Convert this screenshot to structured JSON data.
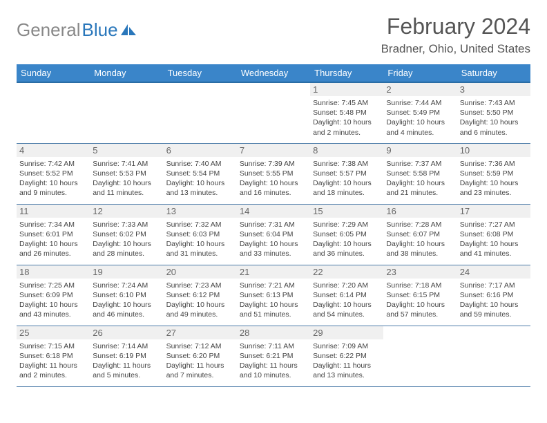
{
  "logo": {
    "text1": "General",
    "text2": "Blue",
    "accent": "#2a77bb",
    "muted": "#888888"
  },
  "header": {
    "month": "February 2024",
    "location": "Bradner, Ohio, United States"
  },
  "dayNames": [
    "Sunday",
    "Monday",
    "Tuesday",
    "Wednesday",
    "Thursday",
    "Friday",
    "Saturday"
  ],
  "theme": {
    "header_bg": "#3a85c9",
    "header_fg": "#ffffff",
    "row_border": "#4a7aa8",
    "daynum_bg": "#f0f0f0",
    "daynum_fg": "#666666",
    "text_color": "#444444"
  },
  "weeks": [
    [
      {
        "n": "",
        "sr": "",
        "ss": "",
        "dl": "",
        "empty": true
      },
      {
        "n": "",
        "sr": "",
        "ss": "",
        "dl": "",
        "empty": true
      },
      {
        "n": "",
        "sr": "",
        "ss": "",
        "dl": "",
        "empty": true
      },
      {
        "n": "",
        "sr": "",
        "ss": "",
        "dl": "",
        "empty": true
      },
      {
        "n": "1",
        "sr": "Sunrise: 7:45 AM",
        "ss": "Sunset: 5:48 PM",
        "dl": "Daylight: 10 hours and 2 minutes."
      },
      {
        "n": "2",
        "sr": "Sunrise: 7:44 AM",
        "ss": "Sunset: 5:49 PM",
        "dl": "Daylight: 10 hours and 4 minutes."
      },
      {
        "n": "3",
        "sr": "Sunrise: 7:43 AM",
        "ss": "Sunset: 5:50 PM",
        "dl": "Daylight: 10 hours and 6 minutes."
      }
    ],
    [
      {
        "n": "4",
        "sr": "Sunrise: 7:42 AM",
        "ss": "Sunset: 5:52 PM",
        "dl": "Daylight: 10 hours and 9 minutes."
      },
      {
        "n": "5",
        "sr": "Sunrise: 7:41 AM",
        "ss": "Sunset: 5:53 PM",
        "dl": "Daylight: 10 hours and 11 minutes."
      },
      {
        "n": "6",
        "sr": "Sunrise: 7:40 AM",
        "ss": "Sunset: 5:54 PM",
        "dl": "Daylight: 10 hours and 13 minutes."
      },
      {
        "n": "7",
        "sr": "Sunrise: 7:39 AM",
        "ss": "Sunset: 5:55 PM",
        "dl": "Daylight: 10 hours and 16 minutes."
      },
      {
        "n": "8",
        "sr": "Sunrise: 7:38 AM",
        "ss": "Sunset: 5:57 PM",
        "dl": "Daylight: 10 hours and 18 minutes."
      },
      {
        "n": "9",
        "sr": "Sunrise: 7:37 AM",
        "ss": "Sunset: 5:58 PM",
        "dl": "Daylight: 10 hours and 21 minutes."
      },
      {
        "n": "10",
        "sr": "Sunrise: 7:36 AM",
        "ss": "Sunset: 5:59 PM",
        "dl": "Daylight: 10 hours and 23 minutes."
      }
    ],
    [
      {
        "n": "11",
        "sr": "Sunrise: 7:34 AM",
        "ss": "Sunset: 6:01 PM",
        "dl": "Daylight: 10 hours and 26 minutes."
      },
      {
        "n": "12",
        "sr": "Sunrise: 7:33 AM",
        "ss": "Sunset: 6:02 PM",
        "dl": "Daylight: 10 hours and 28 minutes."
      },
      {
        "n": "13",
        "sr": "Sunrise: 7:32 AM",
        "ss": "Sunset: 6:03 PM",
        "dl": "Daylight: 10 hours and 31 minutes."
      },
      {
        "n": "14",
        "sr": "Sunrise: 7:31 AM",
        "ss": "Sunset: 6:04 PM",
        "dl": "Daylight: 10 hours and 33 minutes."
      },
      {
        "n": "15",
        "sr": "Sunrise: 7:29 AM",
        "ss": "Sunset: 6:05 PM",
        "dl": "Daylight: 10 hours and 36 minutes."
      },
      {
        "n": "16",
        "sr": "Sunrise: 7:28 AM",
        "ss": "Sunset: 6:07 PM",
        "dl": "Daylight: 10 hours and 38 minutes."
      },
      {
        "n": "17",
        "sr": "Sunrise: 7:27 AM",
        "ss": "Sunset: 6:08 PM",
        "dl": "Daylight: 10 hours and 41 minutes."
      }
    ],
    [
      {
        "n": "18",
        "sr": "Sunrise: 7:25 AM",
        "ss": "Sunset: 6:09 PM",
        "dl": "Daylight: 10 hours and 43 minutes."
      },
      {
        "n": "19",
        "sr": "Sunrise: 7:24 AM",
        "ss": "Sunset: 6:10 PM",
        "dl": "Daylight: 10 hours and 46 minutes."
      },
      {
        "n": "20",
        "sr": "Sunrise: 7:23 AM",
        "ss": "Sunset: 6:12 PM",
        "dl": "Daylight: 10 hours and 49 minutes."
      },
      {
        "n": "21",
        "sr": "Sunrise: 7:21 AM",
        "ss": "Sunset: 6:13 PM",
        "dl": "Daylight: 10 hours and 51 minutes."
      },
      {
        "n": "22",
        "sr": "Sunrise: 7:20 AM",
        "ss": "Sunset: 6:14 PM",
        "dl": "Daylight: 10 hours and 54 minutes."
      },
      {
        "n": "23",
        "sr": "Sunrise: 7:18 AM",
        "ss": "Sunset: 6:15 PM",
        "dl": "Daylight: 10 hours and 57 minutes."
      },
      {
        "n": "24",
        "sr": "Sunrise: 7:17 AM",
        "ss": "Sunset: 6:16 PM",
        "dl": "Daylight: 10 hours and 59 minutes."
      }
    ],
    [
      {
        "n": "25",
        "sr": "Sunrise: 7:15 AM",
        "ss": "Sunset: 6:18 PM",
        "dl": "Daylight: 11 hours and 2 minutes."
      },
      {
        "n": "26",
        "sr": "Sunrise: 7:14 AM",
        "ss": "Sunset: 6:19 PM",
        "dl": "Daylight: 11 hours and 5 minutes."
      },
      {
        "n": "27",
        "sr": "Sunrise: 7:12 AM",
        "ss": "Sunset: 6:20 PM",
        "dl": "Daylight: 11 hours and 7 minutes."
      },
      {
        "n": "28",
        "sr": "Sunrise: 7:11 AM",
        "ss": "Sunset: 6:21 PM",
        "dl": "Daylight: 11 hours and 10 minutes."
      },
      {
        "n": "29",
        "sr": "Sunrise: 7:09 AM",
        "ss": "Sunset: 6:22 PM",
        "dl": "Daylight: 11 hours and 13 minutes."
      },
      {
        "n": "",
        "sr": "",
        "ss": "",
        "dl": "",
        "empty": true
      },
      {
        "n": "",
        "sr": "",
        "ss": "",
        "dl": "",
        "empty": true
      }
    ]
  ]
}
